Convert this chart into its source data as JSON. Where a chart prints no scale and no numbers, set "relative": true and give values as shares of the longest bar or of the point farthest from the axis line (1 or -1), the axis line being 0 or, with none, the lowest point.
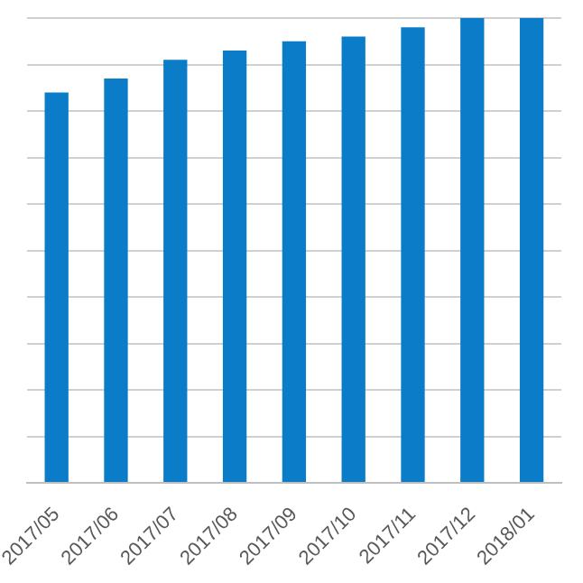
{
  "chart_data": {
    "type": "bar",
    "relative": true,
    "categories": [
      "2017/05",
      "2017/06",
      "2017/07",
      "2017/08",
      "2017/09",
      "2017/10",
      "2017/11",
      "2017/12",
      "2018/01"
    ],
    "series": [
      {
        "color": "#0b7dc8",
        "values": [
          0.84,
          0.87,
          0.91,
          0.93,
          0.95,
          0.96,
          0.98,
          1,
          1
        ]
      }
    ],
    "grid": "y",
    "legend": false
  }
}
